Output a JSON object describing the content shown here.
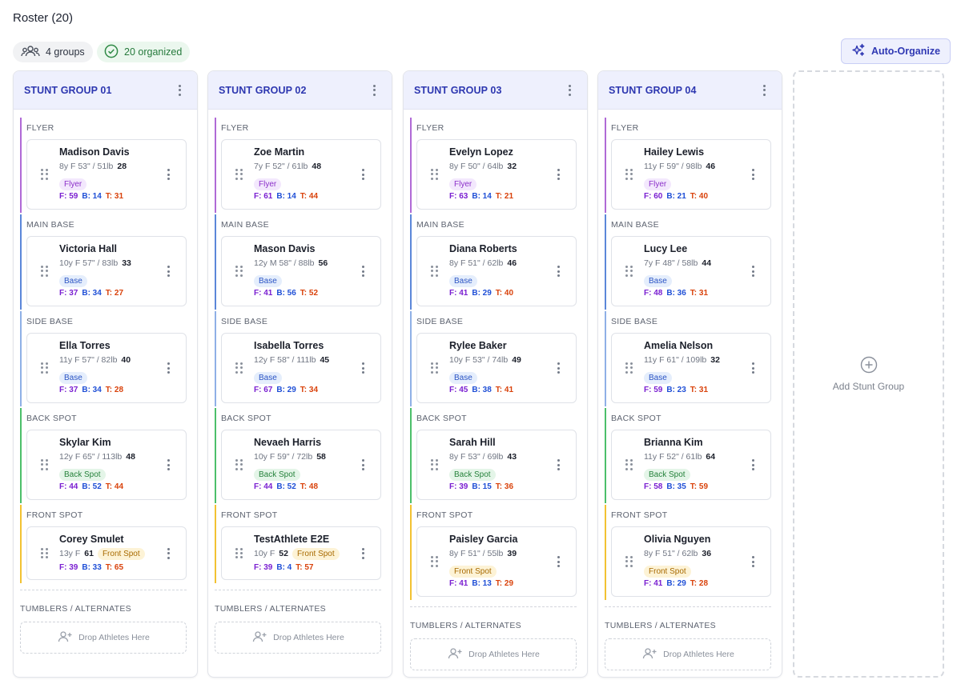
{
  "header": {
    "title": "Roster (20)",
    "groups_chip": "4 groups",
    "organized_chip": "20 organized",
    "auto_organize": "Auto-Organize"
  },
  "colors": {
    "accent": "#2f38b3",
    "flyer": "#b06ad6",
    "main_base": "#5b87d9",
    "side_base": "#8fb0e6",
    "back_spot": "#4cbf6a",
    "front_spot": "#f2c232"
  },
  "groups": [
    {
      "title": "STUNT GROUP 01",
      "sections": [
        {
          "label": "FLYER",
          "cards": [
            {
              "name": "Madison Davis",
              "meta": "8y F  53\" / 51lb",
              "score": "28",
              "badge": "Flyer",
              "f": "F: 59",
              "b": "B: 14",
              "t": "T: 31"
            }
          ]
        },
        {
          "label": "MAIN BASE",
          "cards": [
            {
              "name": "Victoria Hall",
              "meta": "10y F  57\" / 83lb",
              "score": "33",
              "badge": "Base",
              "f": "F: 37",
              "b": "B: 34",
              "t": "T: 27"
            }
          ]
        },
        {
          "label": "SIDE BASE",
          "cards": [
            {
              "name": "Ella Torres",
              "meta": "11y F  57\" / 82lb",
              "score": "40",
              "badge": "Base",
              "f": "F: 37",
              "b": "B: 34",
              "t": "T: 28"
            }
          ]
        },
        {
          "label": "BACK SPOT",
          "cards": [
            {
              "name": "Skylar Kim",
              "meta": "12y F  65\" / 113lb",
              "score": "48",
              "badge": "Back Spot",
              "f": "F: 44",
              "b": "B: 52",
              "t": "T: 44"
            }
          ]
        },
        {
          "label": "FRONT SPOT",
          "cards": [
            {
              "name": "Corey Smulet",
              "meta": "13y F",
              "score": "61",
              "badge": "Front Spot",
              "inline": true,
              "f": "F: 39",
              "b": "B: 33",
              "t": "T: 65"
            }
          ]
        }
      ],
      "tumblers_label": "TUMBLERS / ALTERNATES",
      "drop_text": "Drop Athletes Here"
    },
    {
      "title": "STUNT GROUP 02",
      "sections": [
        {
          "label": "FLYER",
          "cards": [
            {
              "name": "Zoe Martin",
              "meta": "7y F  52\" / 61lb",
              "score": "48",
              "badge": "Flyer",
              "f": "F: 61",
              "b": "B: 14",
              "t": "T: 44"
            }
          ]
        },
        {
          "label": "MAIN BASE",
          "cards": [
            {
              "name": "Mason Davis",
              "meta": "12y M  58\" / 88lb",
              "score": "56",
              "badge": "Base",
              "f": "F: 41",
              "b": "B: 56",
              "t": "T: 52"
            }
          ]
        },
        {
          "label": "SIDE BASE",
          "cards": [
            {
              "name": "Isabella Torres",
              "meta": "12y F  58\" / 111lb",
              "score": "45",
              "badge": "Base",
              "f": "F: 67",
              "b": "B: 29",
              "t": "T: 34"
            }
          ]
        },
        {
          "label": "BACK SPOT",
          "cards": [
            {
              "name": "Nevaeh Harris",
              "meta": "10y F  59\" / 72lb",
              "score": "58",
              "badge": "Back Spot",
              "f": "F: 44",
              "b": "B: 52",
              "t": "T: 48"
            }
          ]
        },
        {
          "label": "FRONT SPOT",
          "cards": [
            {
              "name": "TestAthlete E2E",
              "meta": "10y F",
              "score": "52",
              "badge": "Front Spot",
              "inline": true,
              "f": "F: 39",
              "b": "B: 4",
              "t": "T: 57"
            }
          ]
        }
      ],
      "tumblers_label": "TUMBLERS / ALTERNATES",
      "drop_text": "Drop Athletes Here"
    },
    {
      "title": "STUNT GROUP 03",
      "sections": [
        {
          "label": "FLYER",
          "cards": [
            {
              "name": "Evelyn Lopez",
              "meta": "8y F  50\" / 64lb",
              "score": "32",
              "badge": "Flyer",
              "f": "F: 63",
              "b": "B: 14",
              "t": "T: 21"
            }
          ]
        },
        {
          "label": "MAIN BASE",
          "cards": [
            {
              "name": "Diana Roberts",
              "meta": "8y F  51\" / 62lb",
              "score": "46",
              "badge": "Base",
              "f": "F: 41",
              "b": "B: 29",
              "t": "T: 40"
            }
          ]
        },
        {
          "label": "SIDE BASE",
          "cards": [
            {
              "name": "Rylee Baker",
              "meta": "10y F  53\" / 74lb",
              "score": "49",
              "badge": "Base",
              "f": "F: 45",
              "b": "B: 38",
              "t": "T: 41"
            }
          ]
        },
        {
          "label": "BACK SPOT",
          "cards": [
            {
              "name": "Sarah Hill",
              "meta": "8y F  53\" / 69lb",
              "score": "43",
              "badge": "Back Spot",
              "f": "F: 39",
              "b": "B: 15",
              "t": "T: 36"
            }
          ]
        },
        {
          "label": "FRONT SPOT",
          "cards": [
            {
              "name": "Paisley Garcia",
              "meta": "8y F  51\" / 55lb",
              "score": "39",
              "badge": "Front Spot",
              "f": "F: 41",
              "b": "B: 13",
              "t": "T: 29"
            }
          ]
        }
      ],
      "tumblers_label": "TUMBLERS / ALTERNATES",
      "drop_text": "Drop Athletes Here"
    },
    {
      "title": "STUNT GROUP 04",
      "sections": [
        {
          "label": "FLYER",
          "cards": [
            {
              "name": "Hailey Lewis",
              "meta": "11y F  59\" / 98lb",
              "score": "46",
              "badge": "Flyer",
              "f": "F: 60",
              "b": "B: 21",
              "t": "T: 40"
            }
          ]
        },
        {
          "label": "MAIN BASE",
          "cards": [
            {
              "name": "Lucy Lee",
              "meta": "7y F  48\" / 58lb",
              "score": "44",
              "badge": "Base",
              "f": "F: 48",
              "b": "B: 36",
              "t": "T: 31"
            }
          ]
        },
        {
          "label": "SIDE BASE",
          "cards": [
            {
              "name": "Amelia Nelson",
              "meta": "11y F  61\" / 109lb",
              "score": "32",
              "badge": "Base",
              "f": "F: 59",
              "b": "B: 23",
              "t": "T: 31"
            }
          ]
        },
        {
          "label": "BACK SPOT",
          "cards": [
            {
              "name": "Brianna Kim",
              "meta": "11y F  52\" / 61lb",
              "score": "64",
              "badge": "Back Spot",
              "f": "F: 58",
              "b": "B: 35",
              "t": "T: 59"
            }
          ]
        },
        {
          "label": "FRONT SPOT",
          "cards": [
            {
              "name": "Olivia Nguyen",
              "meta": "8y F  51\" / 62lb",
              "score": "36",
              "badge": "Front Spot",
              "f": "F: 41",
              "b": "B: 29",
              "t": "T: 28"
            }
          ]
        }
      ],
      "tumblers_label": "TUMBLERS / ALTERNATES",
      "drop_text": "Drop Athletes Here"
    }
  ],
  "add_group": "Add Stunt Group"
}
